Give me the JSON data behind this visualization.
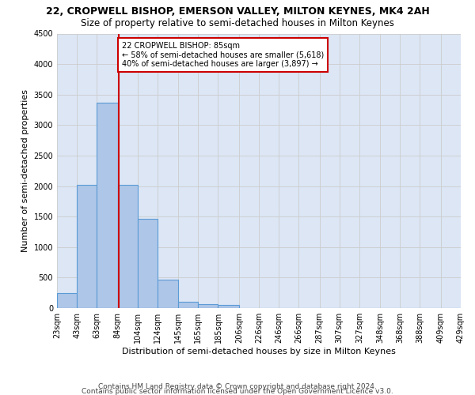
{
  "title": "22, CROPWELL BISHOP, EMERSON VALLEY, MILTON KEYNES, MK4 2AH",
  "subtitle": "Size of property relative to semi-detached houses in Milton Keynes",
  "xlabel": "Distribution of semi-detached houses by size in Milton Keynes",
  "ylabel": "Number of semi-detached properties",
  "footer_line1": "Contains HM Land Registry data © Crown copyright and database right 2024.",
  "footer_line2": "Contains public sector information licensed under the Open Government Licence v3.0.",
  "annotation_title": "22 CROPWELL BISHOP: 85sqm",
  "annotation_line1": "← 58% of semi-detached houses are smaller (5,618)",
  "annotation_line2": "40% of semi-detached houses are larger (3,897) →",
  "property_size": 85,
  "bar_edges": [
    23,
    43,
    63,
    84,
    104,
    124,
    145,
    165,
    185,
    206,
    226,
    246,
    266,
    287,
    307,
    327,
    348,
    368,
    388,
    409,
    429
  ],
  "bar_values": [
    250,
    2020,
    3370,
    2020,
    1460,
    470,
    100,
    60,
    50,
    0,
    0,
    0,
    0,
    0,
    0,
    0,
    0,
    0,
    0,
    0
  ],
  "bar_color": "#aec6e8",
  "bar_edge_color": "#5b9bd5",
  "vline_color": "#cc0000",
  "vline_x": 85,
  "annotation_box_color": "#cc0000",
  "ylim": [
    0,
    4500
  ],
  "yticks": [
    0,
    500,
    1000,
    1500,
    2000,
    2500,
    3000,
    3500,
    4000,
    4500
  ],
  "grid_color": "#cccccc",
  "bg_color": "#dce6f5",
  "title_fontsize": 9,
  "subtitle_fontsize": 8.5,
  "xlabel_fontsize": 8,
  "ylabel_fontsize": 8,
  "tick_fontsize": 7,
  "annotation_fontsize": 7,
  "footer_fontsize": 6.5
}
